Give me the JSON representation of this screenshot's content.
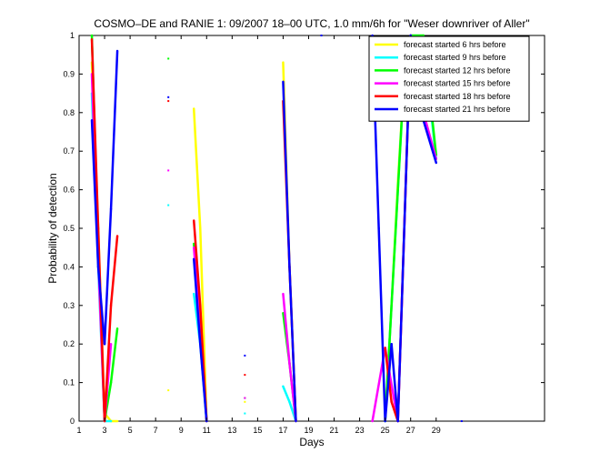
{
  "chart_data": {
    "type": "line",
    "title": "COSMO–DE and RANIE 1: 09/2007 18–00 UTC, 1.0 mm/6h for \"Weser downriver of Aller\"",
    "xlabel": "Days",
    "ylabel": "Probability of detection",
    "xlim": [
      1,
      37.5
    ],
    "ylim": [
      0,
      1
    ],
    "xticks": [
      1,
      3,
      5,
      7,
      9,
      11,
      13,
      15,
      17,
      19,
      21,
      23,
      25,
      27,
      29
    ],
    "yticks": [
      0,
      0.1,
      0.2,
      0.3,
      0.4,
      0.5,
      0.6,
      0.7,
      0.8,
      0.9,
      1
    ],
    "yticklabels": [
      "0",
      "0.1",
      "0.2",
      "0.3",
      "0.4",
      "0.5",
      "0.6",
      "0.7",
      "0.8",
      "0.9",
      "1"
    ],
    "legend_position": "top-right",
    "series": [
      {
        "name": "forecast started 6 hrs before",
        "color": "#ffff00",
        "points": [
          [
            2,
            0.93
          ],
          [
            2.5,
            0.5
          ],
          [
            3,
            0.02
          ],
          [
            3.5,
            0
          ],
          [
            4,
            0
          ],
          [
            8,
            0.08
          ],
          [
            10,
            0.81
          ],
          [
            10.5,
            0.5
          ],
          [
            11,
            0
          ],
          [
            14,
            0.05
          ],
          [
            17,
            0.93
          ],
          [
            17.5,
            0.4
          ],
          [
            18,
            0
          ],
          [
            25,
            0
          ],
          [
            25.5,
            0.3
          ],
          [
            26,
            0.62
          ],
          [
            26.5,
            0.9
          ],
          [
            27,
            1
          ],
          [
            28,
            0.8
          ],
          [
            29,
            0.68
          ]
        ]
      },
      {
        "name": "forecast started 9 hrs before",
        "color": "#00ffff",
        "points": [
          [
            2,
            0.85
          ],
          [
            2.5,
            0.4
          ],
          [
            3,
            0
          ],
          [
            3.5,
            0
          ],
          [
            8,
            0.56
          ],
          [
            10,
            0.33
          ],
          [
            10.5,
            0.2
          ],
          [
            11,
            0
          ],
          [
            14,
            0.02
          ],
          [
            17,
            0.09
          ],
          [
            17.5,
            0.05
          ],
          [
            18,
            0
          ],
          [
            25,
            0
          ],
          [
            25.5,
            0.3
          ],
          [
            26,
            0.6
          ],
          [
            26.5,
            0.9
          ],
          [
            27,
            1
          ],
          [
            28,
            0.98
          ],
          [
            29,
            0.68
          ]
        ]
      },
      {
        "name": "forecast started 12 hrs before",
        "color": "#00ff00",
        "points": [
          [
            2,
            1
          ],
          [
            2.5,
            0.45
          ],
          [
            3,
            0
          ],
          [
            3.5,
            0.1
          ],
          [
            4,
            0.24
          ],
          [
            8,
            0.94
          ],
          [
            10,
            0.46
          ],
          [
            10.5,
            0.25
          ],
          [
            11,
            0
          ],
          [
            14,
            0.06
          ],
          [
            17,
            0.28
          ],
          [
            17.5,
            0.15
          ],
          [
            18,
            0
          ],
          [
            25,
            0
          ],
          [
            25.5,
            0.3
          ],
          [
            26,
            0.6
          ],
          [
            26.5,
            0.9
          ],
          [
            27,
            1
          ],
          [
            28,
            1
          ],
          [
            29,
            0.69
          ]
        ]
      },
      {
        "name": "forecast started 15 hrs before",
        "color": "#ff00ff",
        "points": [
          [
            2,
            0.9
          ],
          [
            2.5,
            0.42
          ],
          [
            3,
            0
          ],
          [
            3.5,
            0.2
          ],
          [
            8,
            0.65
          ],
          [
            10,
            0.45
          ],
          [
            10.5,
            0.25
          ],
          [
            11,
            0
          ],
          [
            14,
            0.06
          ],
          [
            17,
            0.33
          ],
          [
            17.5,
            0.15
          ],
          [
            18,
            0
          ],
          [
            24,
            0
          ],
          [
            25,
            0.19
          ],
          [
            26,
            0
          ],
          [
            27,
            1
          ],
          [
            28,
            0.8
          ],
          [
            29,
            0.68
          ]
        ]
      },
      {
        "name": "forecast started 18 hrs before",
        "color": "#ff0000",
        "points": [
          [
            2,
            0.99
          ],
          [
            2.5,
            0.5
          ],
          [
            3,
            0
          ],
          [
            3.5,
            0.3
          ],
          [
            4,
            0.48
          ],
          [
            8,
            0.83
          ],
          [
            10,
            0.52
          ],
          [
            10.5,
            0.3
          ],
          [
            11,
            0
          ],
          [
            14,
            0.12
          ],
          [
            17,
            0.83
          ],
          [
            17.5,
            0.4
          ],
          [
            18,
            0
          ],
          [
            25,
            0.19
          ],
          [
            25.5,
            0.05
          ],
          [
            26,
            0
          ],
          [
            27,
            1
          ],
          [
            28,
            0.8
          ],
          [
            29,
            0.86
          ]
        ]
      },
      {
        "name": "forecast started 21 hrs before",
        "color": "#0000ff",
        "points": [
          [
            2,
            0.78
          ],
          [
            2.5,
            0.4
          ],
          [
            3,
            0.2
          ],
          [
            3.5,
            0.55
          ],
          [
            4,
            0.96
          ],
          [
            8,
            0.84
          ],
          [
            10,
            0.42
          ],
          [
            10.5,
            0.2
          ],
          [
            11,
            0
          ],
          [
            14,
            0.17
          ],
          [
            17,
            0.88
          ],
          [
            17.5,
            0.4
          ],
          [
            18,
            0
          ],
          [
            20,
            1
          ],
          [
            24,
            1
          ],
          [
            24.5,
            0.5
          ],
          [
            25,
            0
          ],
          [
            25.5,
            0.2
          ],
          [
            26,
            0
          ],
          [
            27,
            1
          ],
          [
            28,
            0.78
          ],
          [
            29,
            0.67
          ],
          [
            31,
            0
          ]
        ]
      }
    ]
  }
}
